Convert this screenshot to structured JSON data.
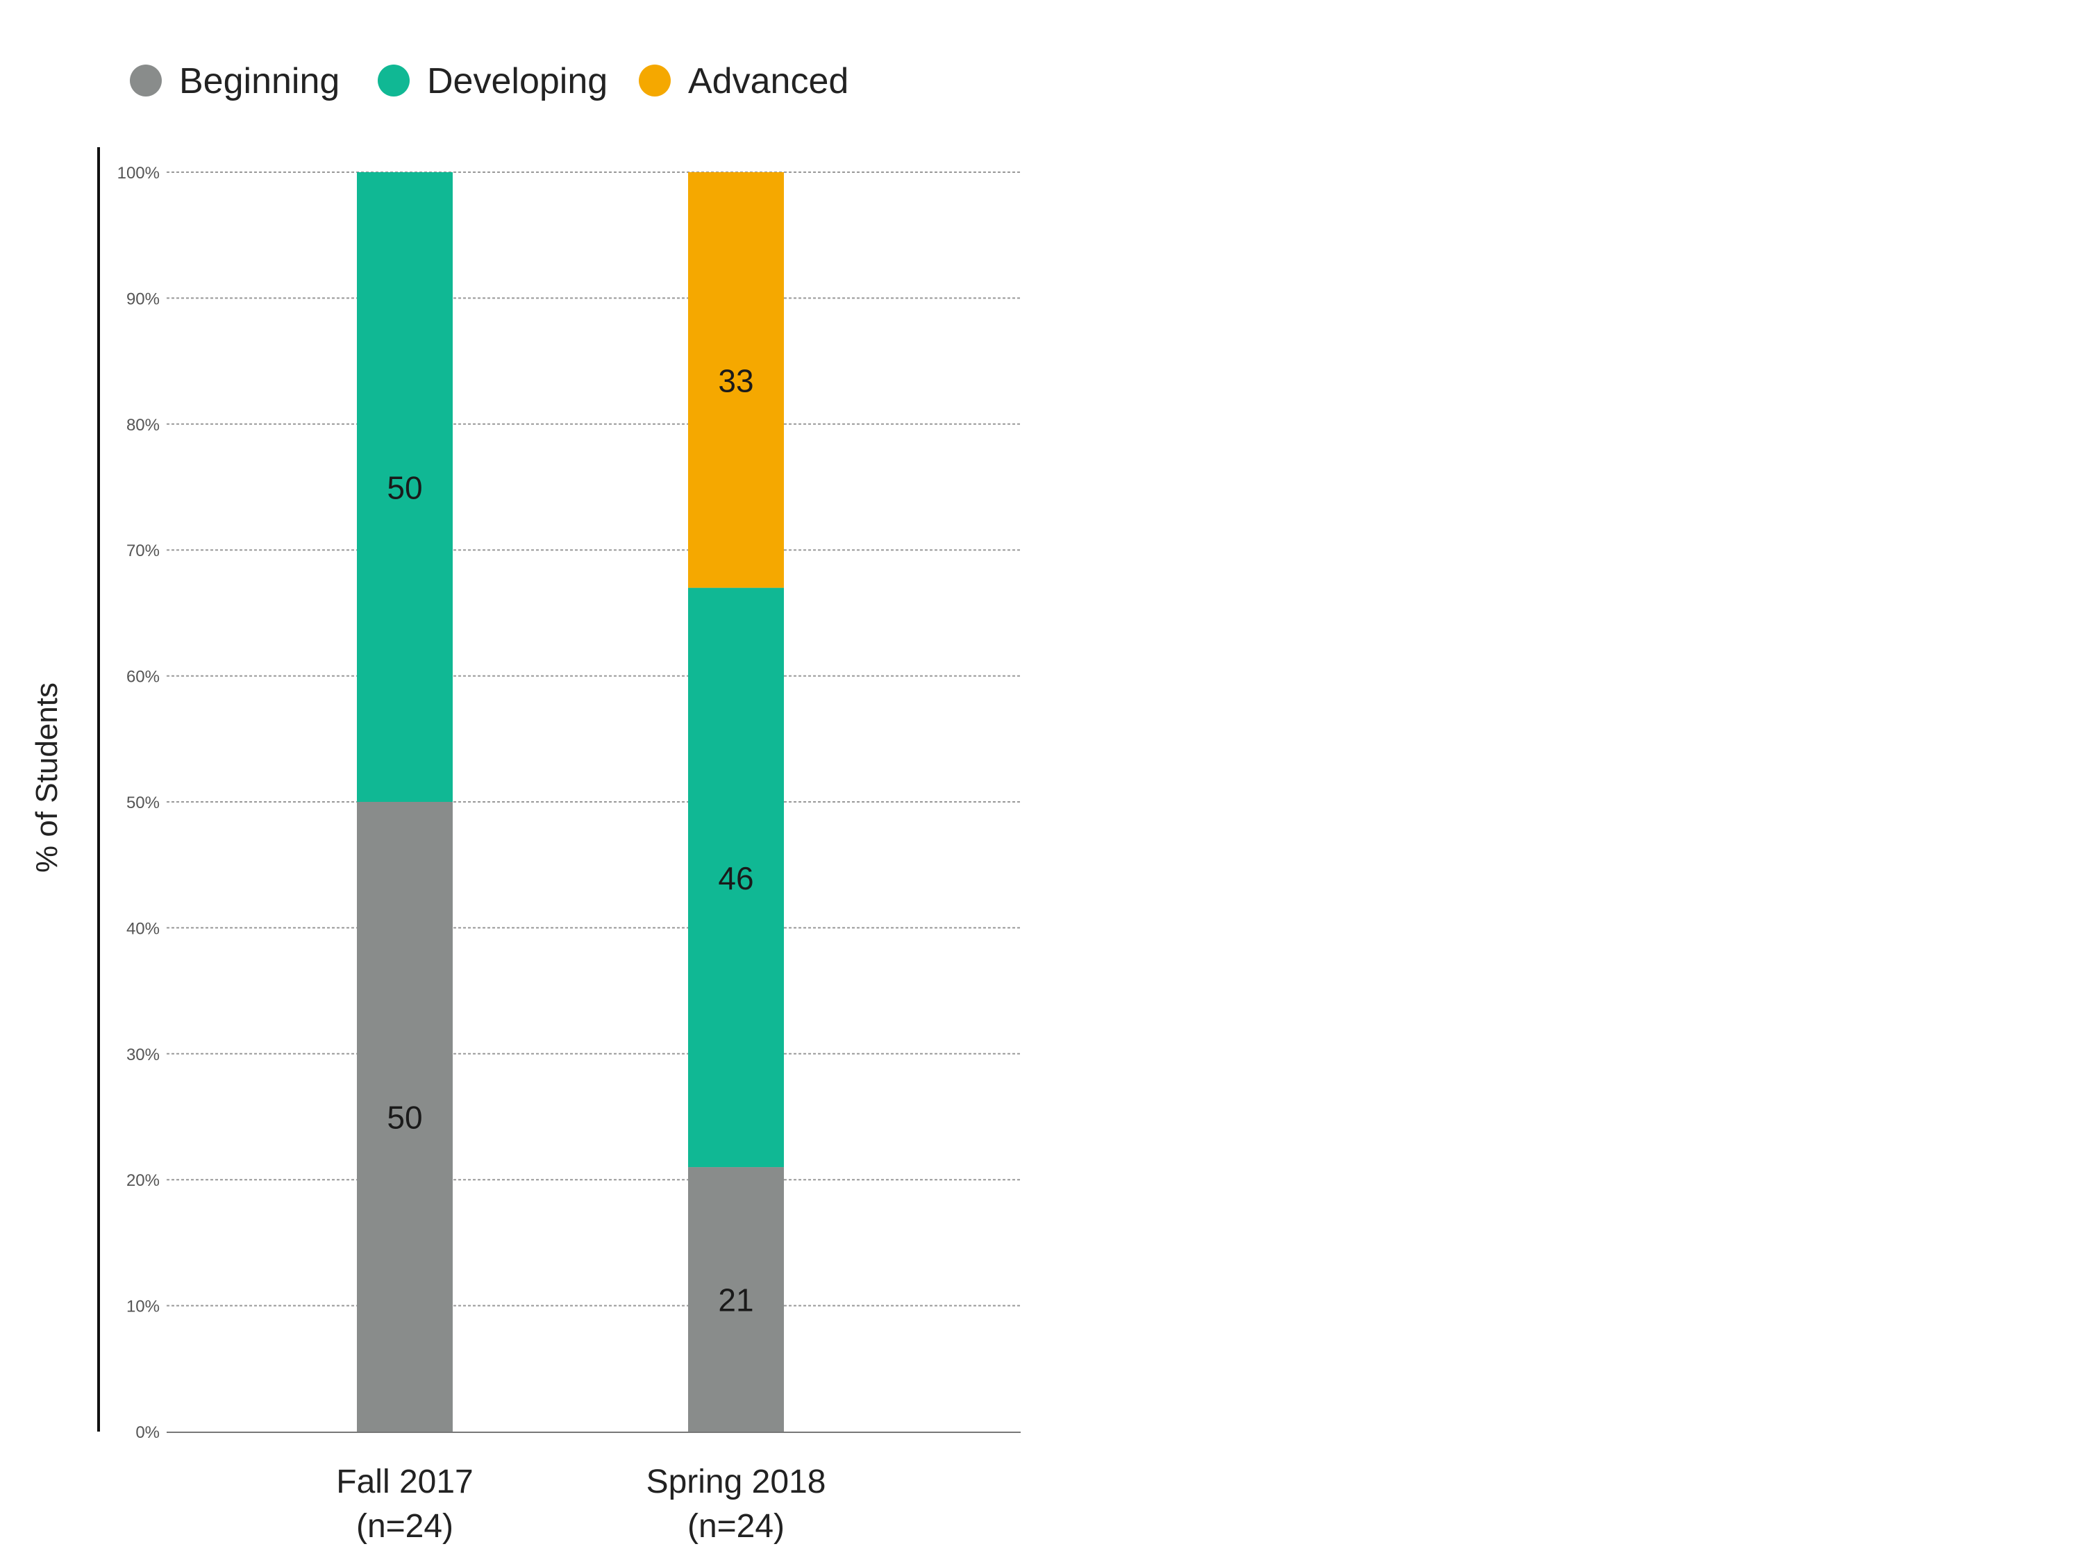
{
  "chart_data": {
    "type": "bar",
    "stacked": true,
    "title": "",
    "xlabel": "",
    "ylabel": "% of Students",
    "ylim": [
      0,
      100
    ],
    "yticks": [
      "0%",
      "10%",
      "20%",
      "30%",
      "40%",
      "50%",
      "60%",
      "70%",
      "80%",
      "90%",
      "100%"
    ],
    "grid": true,
    "legend_position": "top-left",
    "categories": [
      {
        "line1": "Fall 2017",
        "line2": "(n=24)"
      },
      {
        "line1": "Spring 2018",
        "line2": "(n=24)"
      }
    ],
    "series": [
      {
        "name": "Beginning",
        "color": "#898c8b",
        "values": [
          50,
          21
        ]
      },
      {
        "name": "Developing",
        "color": "#10b894",
        "values": [
          50,
          46
        ]
      },
      {
        "name": "Advanced",
        "color": "#f5a800",
        "values": [
          0,
          33
        ]
      }
    ]
  }
}
